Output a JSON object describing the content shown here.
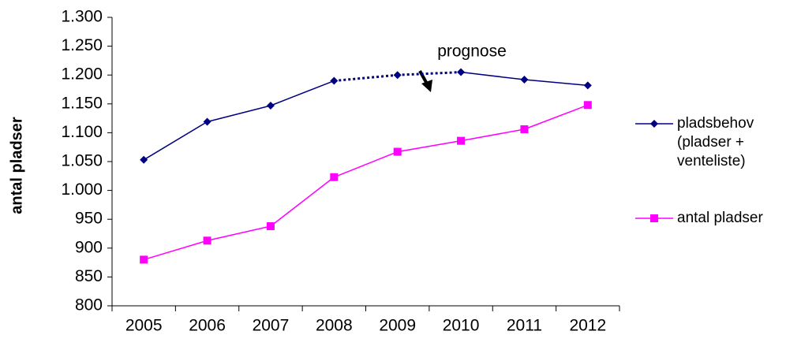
{
  "chart_data": {
    "type": "line",
    "y_axis_label": "antal pladser",
    "annotation": "prognose",
    "categories": [
      "2005",
      "2006",
      "2007",
      "2008",
      "2009",
      "2010",
      "2011",
      "2012"
    ],
    "series": [
      {
        "name": "pladsbehov (pladser + venteliste)",
        "color": "#000080",
        "marker": "diamond",
        "values": [
          1053,
          1119,
          1147,
          1190,
          1200,
          1205,
          1192,
          1182
        ],
        "segment_styles": [
          "solid",
          "solid",
          "solid",
          "dotted",
          "dotted",
          "solid",
          "solid"
        ]
      },
      {
        "name": "antal pladser",
        "color": "#ff00ff",
        "marker": "square",
        "values": [
          880,
          913,
          938,
          1023,
          1067,
          1086,
          1106,
          1148
        ],
        "segment_styles": [
          "solid",
          "solid",
          "solid",
          "solid",
          "solid",
          "solid",
          "solid"
        ]
      }
    ],
    "ylim": [
      800,
      1300
    ],
    "yticks": [
      800,
      850,
      900,
      950,
      {
        "value": 1000,
        "label": "1.000"
      },
      {
        "value": 1050,
        "label": "1.050"
      },
      {
        "value": 1100,
        "label": "1.100"
      },
      {
        "value": 1150,
        "label": "1.150"
      },
      {
        "value": 1200,
        "label": "1.200"
      },
      {
        "value": 1250,
        "label": "1.250"
      },
      {
        "value": 1300,
        "label": "1.300"
      }
    ],
    "grid": false,
    "legend": "right"
  }
}
